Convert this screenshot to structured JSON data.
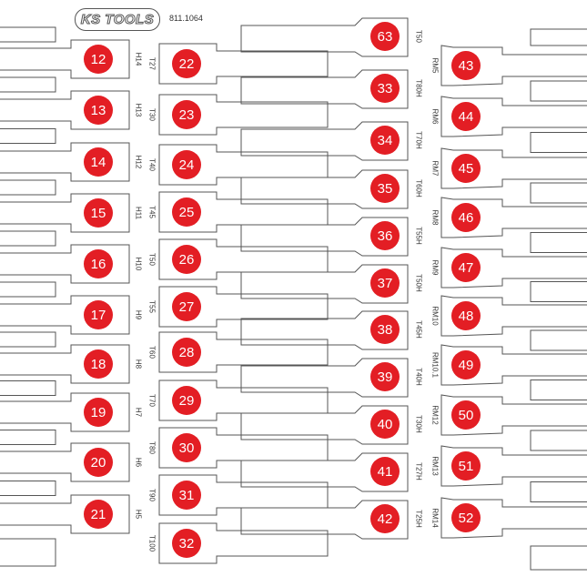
{
  "header": {
    "brand": "KS TOOLS",
    "article_number": "811.1064"
  },
  "colors": {
    "marker": "#e31e24",
    "outline": "#555555"
  },
  "columns": [
    {
      "id": "a",
      "items": [
        {
          "number": "12",
          "label": "H14"
        },
        {
          "number": "13",
          "label": "H13"
        },
        {
          "number": "14",
          "label": "H12"
        },
        {
          "number": "15",
          "label": "H11"
        },
        {
          "number": "16",
          "label": "H10"
        },
        {
          "number": "17",
          "label": "H9"
        },
        {
          "number": "18",
          "label": "H8"
        },
        {
          "number": "19",
          "label": "H7"
        },
        {
          "number": "20",
          "label": "H6"
        },
        {
          "number": "21",
          "label": "H5"
        }
      ]
    },
    {
      "id": "b",
      "items": [
        {
          "number": "22",
          "label": "T27"
        },
        {
          "number": "23",
          "label": "T30"
        },
        {
          "number": "24",
          "label": "T40"
        },
        {
          "number": "25",
          "label": "T45"
        },
        {
          "number": "26",
          "label": "T50"
        },
        {
          "number": "27",
          "label": "T55"
        },
        {
          "number": "28",
          "label": "T60"
        },
        {
          "number": "29",
          "label": "T70"
        },
        {
          "number": "30",
          "label": "T80"
        },
        {
          "number": "31",
          "label": "T90"
        },
        {
          "number": "32",
          "label": "T100"
        }
      ]
    },
    {
      "id": "c",
      "items": [
        {
          "number": "63",
          "label": "T50"
        },
        {
          "number": "33",
          "label": "T80H"
        },
        {
          "number": "34",
          "label": "T70H"
        },
        {
          "number": "35",
          "label": "T60H"
        },
        {
          "number": "36",
          "label": "T55H"
        },
        {
          "number": "37",
          "label": "T50H"
        },
        {
          "number": "38",
          "label": "T45H"
        },
        {
          "number": "39",
          "label": "T40H"
        },
        {
          "number": "40",
          "label": "T30H"
        },
        {
          "number": "41",
          "label": "T27H"
        },
        {
          "number": "42",
          "label": "T25H"
        }
      ]
    },
    {
      "id": "d",
      "items": [
        {
          "number": "43",
          "label": "RM5"
        },
        {
          "number": "44",
          "label": "RM6"
        },
        {
          "number": "45",
          "label": "RM7"
        },
        {
          "number": "46",
          "label": "RM8"
        },
        {
          "number": "47",
          "label": "RM9"
        },
        {
          "number": "48",
          "label": "RM10"
        },
        {
          "number": "49",
          "label": "RM10.1"
        },
        {
          "number": "50",
          "label": "RM12"
        },
        {
          "number": "51",
          "label": "RM13"
        },
        {
          "number": "52",
          "label": "RM14"
        }
      ]
    }
  ]
}
